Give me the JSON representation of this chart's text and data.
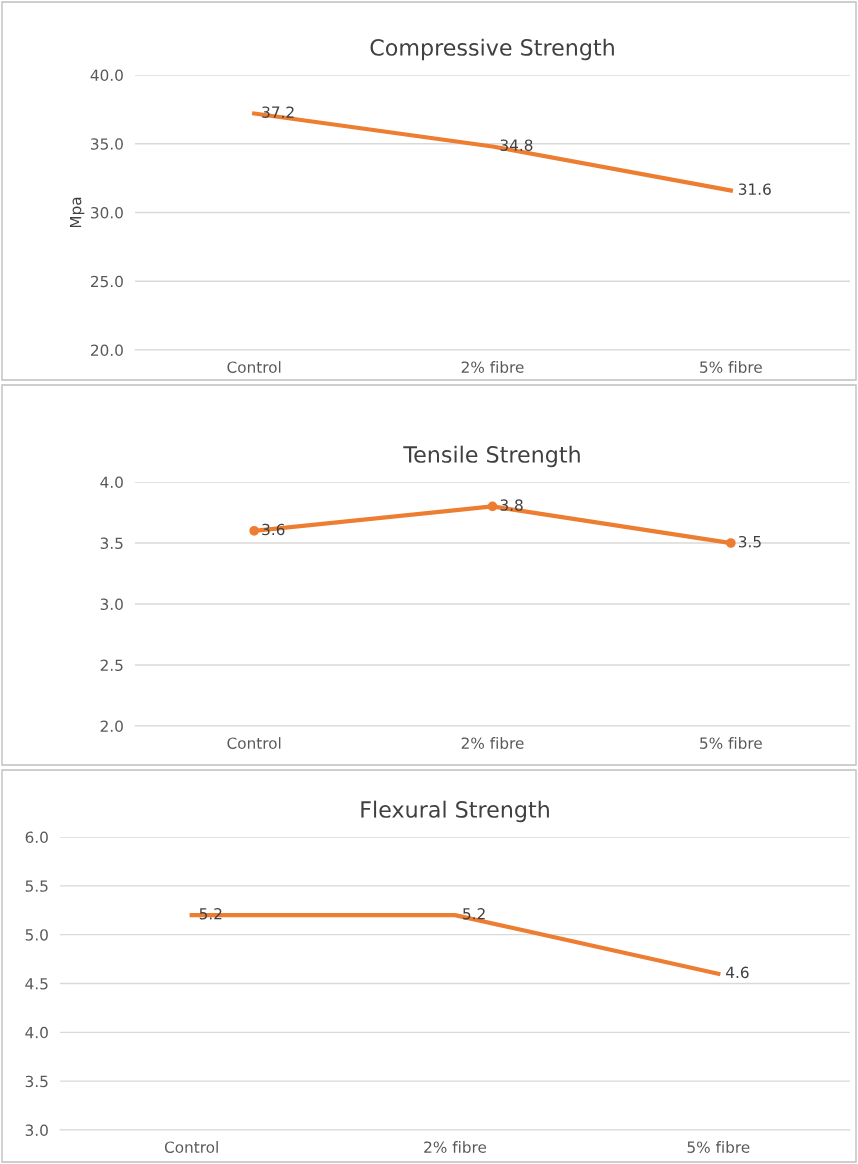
{
  "chart_data": [
    {
      "type": "line",
      "title": "Compressive Strength",
      "ylabel": "Mpa",
      "categories": [
        "Control",
        "2% fibre",
        "5% fibre"
      ],
      "series": [
        {
          "color": "#ed7d31",
          "values": [
            37.2,
            34.8,
            31.6
          ]
        }
      ],
      "ylim": [
        20,
        40
      ],
      "yticks": [
        {
          "value": 20,
          "label": "20.0"
        },
        {
          "value": 25,
          "label": "25.0"
        },
        {
          "value": 30,
          "label": "30.0"
        },
        {
          "value": 35,
          "label": "35.0"
        },
        {
          "value": 40,
          "label": "40.0"
        }
      ],
      "grid": "y",
      "data_labels": true
    },
    {
      "type": "line",
      "title": "Tensile Strength",
      "categories": [
        "Control",
        "2% fibre",
        "5% fibre"
      ],
      "series": [
        {
          "color": "#ed7d31",
          "values": [
            3.6,
            3.8,
            3.5
          ]
        }
      ],
      "ylim": [
        2,
        4
      ],
      "yticks": [
        {
          "value": 2,
          "label": "2.0"
        },
        {
          "value": 2.5,
          "label": "2.5"
        },
        {
          "value": 3,
          "label": "3.0"
        },
        {
          "value": 3.5,
          "label": "3.5"
        },
        {
          "value": 4,
          "label": "4.0"
        }
      ],
      "grid": "y",
      "data_labels": true,
      "marker": "circle"
    },
    {
      "type": "line",
      "title": "Flexural Strength",
      "categories": [
        "Control",
        "2% fibre",
        "5% fibre"
      ],
      "series": [
        {
          "color": "#ed7d31",
          "values": [
            5.2,
            5.2,
            4.6
          ]
        }
      ],
      "ylim": [
        3,
        6
      ],
      "yticks": [
        {
          "value": 3,
          "label": "3.0"
        },
        {
          "value": 3.5,
          "label": "3.5"
        },
        {
          "value": 4,
          "label": "4.0"
        },
        {
          "value": 4.5,
          "label": "4.5"
        },
        {
          "value": 5,
          "label": "5.0"
        },
        {
          "value": 5.5,
          "label": "5.5"
        },
        {
          "value": 6,
          "label": "6.0"
        }
      ],
      "grid": "y",
      "data_labels": true
    }
  ]
}
